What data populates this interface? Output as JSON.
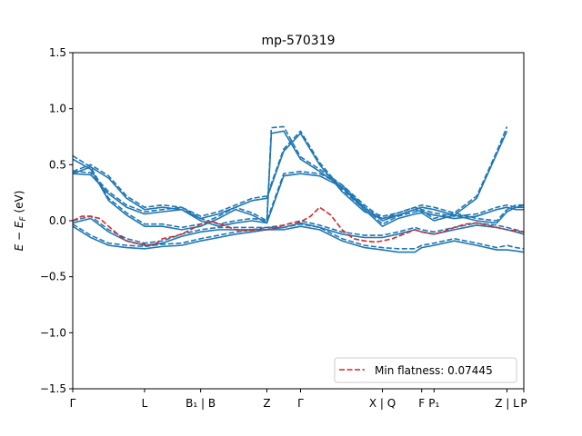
{
  "chart_data": {
    "type": "line",
    "title": "mp-570319",
    "ylabel": "E − E_F (eV)",
    "ylabel_main": "E − E",
    "ylabel_sub": "F",
    "ylabel_unit": " (eV)",
    "xlabel": "",
    "xlim": [
      0,
      4.02
    ],
    "ylim": [
      -1.5,
      1.5
    ],
    "yticks": [
      -1.5,
      -1.0,
      -0.5,
      0.0,
      0.5,
      1.0,
      1.5
    ],
    "ytick_labels": [
      "−1.5",
      "−1.0",
      "−0.5",
      "0.0",
      "0.5",
      "1.0",
      "1.5"
    ],
    "xticks": [
      {
        "x": 0.0,
        "label": "Γ"
      },
      {
        "x": 0.64,
        "label": "L"
      },
      {
        "x": 1.14,
        "label": "B₁ | B"
      },
      {
        "x": 1.73,
        "label": "Z"
      },
      {
        "x": 2.03,
        "label": "Γ"
      },
      {
        "x": 2.76,
        "label": "X | Q"
      },
      {
        "x": 3.11,
        "label": "F"
      },
      {
        "x": 3.22,
        "label": "P₁"
      },
      {
        "x": 3.87,
        "label": "Z | L"
      },
      {
        "x": 4.02,
        "label": "P"
      }
    ],
    "legend": {
      "label": "Min flatness: 0.07445",
      "placement": "lower-right",
      "style": "dashed",
      "color": "#d62728"
    },
    "colors": {
      "band": "#1f77b4",
      "flat": "#d62728"
    },
    "series": [
      {
        "style": "solid",
        "color": "#1f77b4",
        "x": [
          0,
          0.16,
          0.32,
          0.48,
          0.64,
          0.8,
          0.97,
          1.14,
          1.3,
          1.45,
          1.6,
          1.73,
          1.88,
          2.03,
          2.2,
          2.4,
          2.6,
          2.76,
          2.9,
          3.05,
          3.11,
          3.22,
          3.4,
          3.6,
          3.78,
          3.87,
          3.95,
          4.02
        ],
        "y": [
          0.42,
          0.41,
          0.24,
          0.12,
          0.06,
          0.08,
          0.1,
          0.02,
          0.06,
          0.12,
          0.18,
          0.2,
          0.62,
          0.78,
          0.5,
          0.26,
          0.08,
          0.02,
          0.05,
          0.1,
          0.08,
          0.05,
          0.02,
          0.04,
          0.1,
          0.12,
          0.1,
          0.1
        ]
      },
      {
        "style": "dashed",
        "color": "#1f77b4",
        "x": [
          0,
          0.16,
          0.32,
          0.48,
          0.64,
          0.8,
          0.97,
          1.14,
          1.3,
          1.45,
          1.6,
          1.73,
          1.88,
          2.03,
          2.2,
          2.4,
          2.6,
          2.76,
          2.9,
          3.05,
          3.11,
          3.22,
          3.4,
          3.6,
          3.78,
          3.87,
          3.95,
          4.02
        ],
        "y": [
          0.44,
          0.43,
          0.26,
          0.14,
          0.08,
          0.1,
          0.12,
          0.04,
          0.08,
          0.14,
          0.2,
          0.22,
          0.64,
          0.8,
          0.52,
          0.28,
          0.1,
          0.04,
          0.07,
          0.12,
          0.1,
          0.07,
          0.04,
          0.06,
          0.12,
          0.14,
          0.12,
          0.14
        ]
      },
      {
        "style": "solid",
        "color": "#1f77b4",
        "x": [
          0,
          0.16,
          0.32,
          0.48,
          0.64,
          0.8,
          0.97,
          1.14,
          1.3,
          1.45,
          1.6,
          1.73,
          1.77,
          1.88,
          2.03,
          2.2,
          2.4,
          2.6,
          2.76,
          2.9,
          3.05,
          3.11,
          3.22,
          3.4,
          3.6,
          3.78,
          3.87
        ],
        "y": [
          0.55,
          0.46,
          0.18,
          0.05,
          -0.05,
          -0.05,
          -0.08,
          -0.05,
          0.02,
          0.1,
          0.05,
          -0.02,
          0.78,
          0.8,
          0.55,
          0.44,
          0.3,
          0.1,
          -0.05,
          0.02,
          0.06,
          0.07,
          0.0,
          0.05,
          0.2,
          0.6,
          0.8
        ]
      },
      {
        "style": "dashed",
        "color": "#1f77b4",
        "x": [
          0,
          0.16,
          0.32,
          0.48,
          0.64,
          0.8,
          0.97,
          1.14,
          1.3,
          1.45,
          1.6,
          1.73,
          1.77,
          1.88,
          2.03,
          2.2,
          2.4,
          2.6,
          2.76,
          2.9,
          3.05,
          3.11,
          3.22,
          3.4,
          3.6,
          3.78,
          3.87
        ],
        "y": [
          0.58,
          0.48,
          0.2,
          0.07,
          -0.03,
          -0.03,
          -0.06,
          -0.03,
          0.04,
          0.12,
          0.07,
          0.0,
          0.83,
          0.84,
          0.57,
          0.46,
          0.32,
          0.12,
          -0.03,
          0.04,
          0.08,
          0.09,
          0.02,
          0.07,
          0.22,
          0.62,
          0.84
        ]
      },
      {
        "style": "solid",
        "color": "#1f77b4",
        "x": [
          0,
          0.16,
          0.32,
          0.48,
          0.64,
          0.8,
          0.97,
          1.14,
          1.3,
          1.45,
          1.6,
          1.73,
          1.88,
          2.03,
          2.2,
          2.4,
          2.6,
          2.76,
          2.9,
          3.05,
          3.11,
          3.22,
          3.4,
          3.6,
          3.78,
          3.87,
          3.95,
          4.02
        ],
        "y": [
          -0.02,
          0.02,
          -0.1,
          -0.18,
          -0.22,
          -0.2,
          -0.14,
          -0.1,
          -0.08,
          -0.08,
          -0.08,
          -0.08,
          -0.06,
          -0.02,
          -0.06,
          -0.12,
          -0.15,
          -0.15,
          -0.12,
          -0.08,
          -0.1,
          -0.12,
          -0.08,
          -0.04,
          -0.06,
          -0.08,
          -0.1,
          -0.12
        ]
      },
      {
        "style": "dashed",
        "color": "#1f77b4",
        "x": [
          0,
          0.16,
          0.32,
          0.48,
          0.64,
          0.8,
          0.97,
          1.14,
          1.3,
          1.45,
          1.6,
          1.73,
          1.88,
          2.03,
          2.2,
          2.4,
          2.6,
          2.76,
          2.9,
          3.05,
          3.11,
          3.22,
          3.4,
          3.6,
          3.78,
          3.87,
          3.95,
          4.02
        ],
        "y": [
          0.0,
          0.04,
          -0.08,
          -0.16,
          -0.2,
          -0.18,
          -0.12,
          -0.08,
          -0.06,
          -0.06,
          -0.06,
          -0.06,
          -0.04,
          0.0,
          -0.04,
          -0.1,
          -0.13,
          -0.13,
          -0.1,
          -0.06,
          -0.08,
          -0.1,
          -0.06,
          -0.02,
          -0.04,
          -0.06,
          -0.08,
          -0.1
        ]
      },
      {
        "style": "solid",
        "color": "#1f77b4",
        "x": [
          0,
          0.16,
          0.32,
          0.48,
          0.64,
          0.8,
          0.97,
          1.14,
          1.3,
          1.45,
          1.6,
          1.73,
          1.88,
          2.03,
          2.2,
          2.4,
          2.6,
          2.76,
          2.9,
          3.05,
          3.11,
          3.22,
          3.4,
          3.6,
          3.78,
          3.87,
          3.95,
          4.02
        ],
        "y": [
          -0.05,
          -0.15,
          -0.22,
          -0.24,
          -0.25,
          -0.23,
          -0.22,
          -0.18,
          -0.15,
          -0.12,
          -0.1,
          -0.08,
          -0.08,
          -0.05,
          -0.08,
          -0.18,
          -0.24,
          -0.26,
          -0.28,
          -0.28,
          -0.24,
          -0.22,
          -0.18,
          -0.22,
          -0.26,
          -0.26,
          -0.27,
          -0.28
        ]
      },
      {
        "style": "dashed",
        "color": "#1f77b4",
        "x": [
          0,
          0.16,
          0.32,
          0.48,
          0.64,
          0.8,
          0.97,
          1.14,
          1.3,
          1.45,
          1.6,
          1.73,
          1.88,
          2.03,
          2.2,
          2.4,
          2.6,
          2.76,
          2.9,
          3.05,
          3.11,
          3.22,
          3.4,
          3.6,
          3.78,
          3.87,
          3.95,
          4.02
        ],
        "y": [
          -0.03,
          -0.13,
          -0.2,
          -0.22,
          -0.23,
          -0.21,
          -0.2,
          -0.16,
          -0.13,
          -0.1,
          -0.08,
          -0.06,
          -0.06,
          -0.03,
          -0.06,
          -0.16,
          -0.22,
          -0.24,
          -0.25,
          -0.25,
          -0.22,
          -0.2,
          -0.16,
          -0.2,
          -0.24,
          -0.22,
          -0.24,
          -0.25
        ]
      },
      {
        "style": "solid",
        "color": "#1f77b4",
        "x": [
          0,
          0.16,
          0.32,
          0.48,
          0.64,
          0.8,
          0.97,
          1.14,
          1.3,
          1.45,
          1.6,
          1.73,
          1.88,
          2.03,
          2.2,
          2.4,
          2.6,
          2.76,
          2.9,
          3.05,
          3.11,
          3.22,
          3.4,
          3.6,
          3.78,
          3.87,
          3.95,
          4.02
        ],
        "y": [
          0.42,
          0.48,
          0.38,
          0.2,
          0.1,
          0.12,
          0.1,
          0.0,
          -0.05,
          -0.02,
          0.0,
          -0.02,
          0.4,
          0.42,
          0.4,
          0.3,
          0.12,
          0.0,
          0.05,
          0.1,
          0.12,
          0.1,
          0.05,
          0.0,
          -0.02,
          0.08,
          0.12,
          0.12
        ]
      },
      {
        "style": "dashed",
        "color": "#1f77b4",
        "x": [
          0,
          0.16,
          0.32,
          0.48,
          0.64,
          0.8,
          0.97,
          1.14,
          1.3,
          1.45,
          1.6,
          1.73,
          1.88,
          2.03,
          2.2,
          2.4,
          2.6,
          2.76,
          2.9,
          3.05,
          3.11,
          3.22,
          3.4,
          3.6,
          3.78,
          3.87,
          3.95,
          4.02
        ],
        "y": [
          0.44,
          0.5,
          0.4,
          0.22,
          0.12,
          0.14,
          0.12,
          0.02,
          -0.03,
          0.0,
          0.02,
          0.0,
          0.42,
          0.44,
          0.42,
          0.32,
          0.14,
          0.02,
          0.07,
          0.12,
          0.14,
          0.12,
          0.07,
          0.02,
          0.0,
          0.1,
          0.14,
          0.14
        ]
      },
      {
        "style": "dashed",
        "color": "#d62728",
        "x": [
          0,
          0.08,
          0.16,
          0.24,
          0.32,
          0.4,
          0.48,
          0.56,
          0.64,
          0.72,
          0.8,
          0.9,
          0.97,
          1.05,
          1.14,
          1.25,
          1.35,
          1.45,
          1.55,
          1.65,
          1.73,
          1.85,
          1.95,
          2.03,
          2.12,
          2.2,
          2.3,
          2.4,
          2.5,
          2.6,
          2.7,
          2.76,
          2.85,
          2.95,
          3.05,
          3.11,
          3.22,
          3.3,
          3.4,
          3.5,
          3.6,
          3.7,
          3.78,
          3.87,
          3.95,
          4.02
        ],
        "y": [
          0.0,
          0.04,
          0.04,
          0.02,
          -0.05,
          -0.12,
          -0.18,
          -0.2,
          -0.21,
          -0.22,
          -0.16,
          -0.14,
          -0.12,
          -0.08,
          -0.03,
          -0.01,
          -0.04,
          -0.08,
          -0.09,
          -0.08,
          -0.08,
          -0.05,
          -0.02,
          -0.01,
          0.04,
          0.12,
          0.05,
          -0.08,
          -0.16,
          -0.18,
          -0.19,
          -0.18,
          -0.16,
          -0.12,
          -0.08,
          -0.1,
          -0.12,
          -0.1,
          -0.06,
          -0.03,
          -0.02,
          -0.04,
          -0.06,
          -0.08,
          -0.09,
          -0.1
        ]
      }
    ]
  }
}
